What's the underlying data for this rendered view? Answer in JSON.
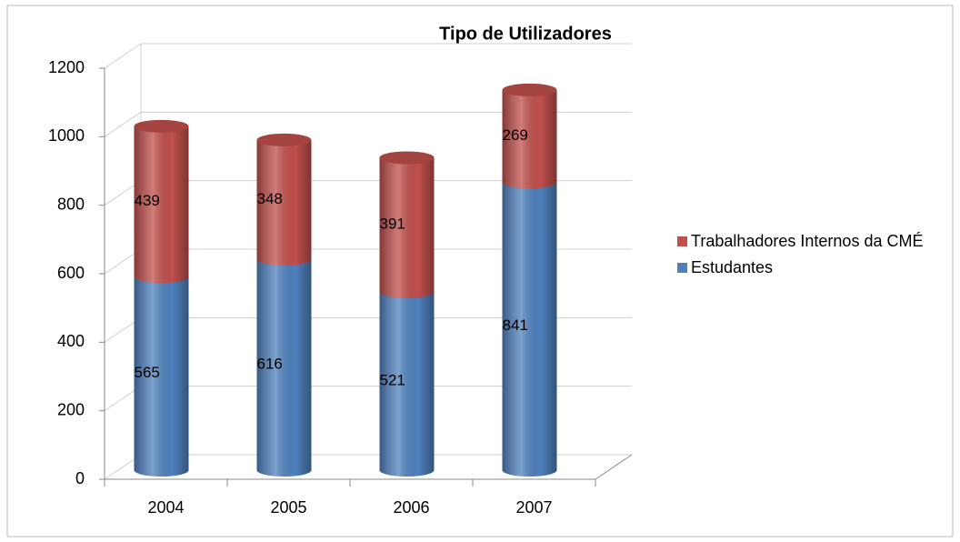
{
  "chart_data": {
    "type": "bar3d_stacked",
    "title": "Tipo de Utilizadores",
    "categories": [
      "2004",
      "2005",
      "2006",
      "2007"
    ],
    "series": [
      {
        "name": "Estudantes",
        "color": "#4f81bd",
        "values": [
          565,
          616,
          521,
          841
        ]
      },
      {
        "name": "Trabalhadores Internos da CMÉ",
        "color": "#c0504d",
        "values": [
          439,
          348,
          391,
          269
        ]
      }
    ],
    "ylim": [
      0,
      1200
    ],
    "yticks": [
      0,
      200,
      400,
      600,
      800,
      1000,
      1200
    ],
    "grid": true,
    "legend": "right"
  }
}
